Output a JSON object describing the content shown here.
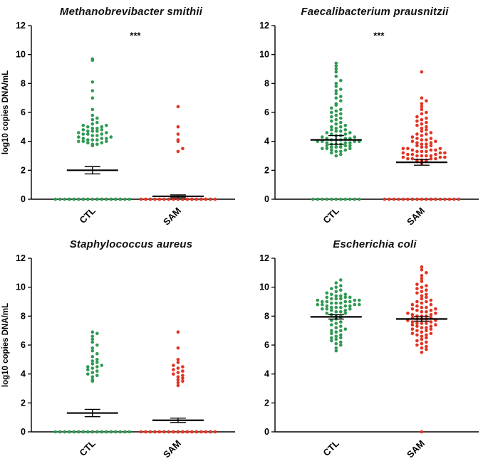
{
  "figure": {
    "background": "#ffffff"
  },
  "chart_data": [
    {
      "type": "scatter",
      "title": "Methanobrevibacter smithii",
      "ylabel": "log10 copies DNA/mL",
      "xlabel": "",
      "ylim": [
        0,
        12
      ],
      "yticks": [
        0,
        2,
        4,
        6,
        8,
        10,
        12
      ],
      "significance": "***",
      "legend": "none",
      "groups": [
        {
          "label": "CTL",
          "color": "#2f9a52",
          "mean": 2.0,
          "sem": 0.25,
          "values": [
            0,
            0,
            0,
            0,
            0,
            0,
            0,
            0,
            0,
            0,
            0,
            0,
            0,
            0,
            0,
            0,
            0,
            0,
            0,
            0,
            0,
            0,
            0,
            0,
            0,
            0,
            0,
            0,
            3.7,
            3.8,
            3.8,
            3.9,
            3.9,
            4.0,
            4.0,
            4.0,
            4.1,
            4.1,
            4.1,
            4.2,
            4.2,
            4.2,
            4.3,
            4.3,
            4.4,
            4.4,
            4.5,
            4.5,
            4.5,
            4.6,
            4.6,
            4.7,
            4.7,
            4.7,
            4.8,
            4.8,
            4.9,
            4.9,
            5.0,
            5.0,
            5.1,
            5.1,
            5.2,
            5.3,
            5.5,
            5.6,
            5.8,
            6.2,
            7.0,
            7.5,
            8.1,
            9.6,
            9.7
          ]
        },
        {
          "label": "SAM",
          "color": "#e23322",
          "mean": 0.2,
          "sem": 0.1,
          "values": [
            0,
            0,
            0,
            0,
            0,
            0,
            0,
            0,
            0,
            0,
            0,
            0,
            0,
            0,
            0,
            0,
            0,
            0,
            0,
            0,
            0,
            0,
            0,
            0,
            0,
            0,
            0,
            0,
            0,
            0,
            0,
            0,
            0,
            0,
            0,
            0,
            0,
            0,
            3.3,
            3.5,
            4.0,
            4.1,
            4.5,
            5.0,
            6.4
          ]
        }
      ]
    },
    {
      "type": "scatter",
      "title": "Faecalibacterium prausnitzii",
      "ylabel": "",
      "xlabel": "",
      "ylim": [
        0,
        12
      ],
      "yticks": [
        0,
        2,
        4,
        6,
        8,
        10,
        12
      ],
      "significance": "***",
      "legend": "none",
      "groups": [
        {
          "label": "CTL",
          "color": "#2f9a52",
          "mean": 4.1,
          "sem": 0.3,
          "values": [
            0,
            0,
            0,
            0,
            0,
            0,
            0,
            0,
            0,
            0,
            0,
            3.0,
            3.1,
            3.2,
            3.3,
            3.3,
            3.4,
            3.4,
            3.5,
            3.5,
            3.5,
            3.6,
            3.6,
            3.6,
            3.7,
            3.7,
            3.7,
            3.8,
            3.8,
            3.8,
            3.9,
            3.9,
            3.9,
            4.0,
            4.0,
            4.0,
            4.0,
            4.1,
            4.1,
            4.1,
            4.2,
            4.2,
            4.2,
            4.3,
            4.3,
            4.4,
            4.4,
            4.5,
            4.5,
            4.6,
            4.6,
            4.7,
            4.7,
            4.8,
            4.8,
            4.9,
            5.0,
            5.0,
            5.1,
            5.2,
            5.3,
            5.4,
            5.5,
            5.6,
            5.7,
            5.8,
            5.9,
            6.0,
            6.1,
            6.2,
            6.3,
            6.5,
            6.6,
            6.8,
            7.0,
            7.1,
            7.3,
            7.5,
            7.6,
            7.8,
            8.0,
            8.2,
            8.5,
            8.8,
            9.0,
            9.2,
            9.4
          ]
        },
        {
          "label": "SAM",
          "color": "#e23322",
          "mean": 2.55,
          "sem": 0.2,
          "values": [
            0,
            0,
            0,
            0,
            0,
            0,
            0,
            0,
            0,
            0,
            0,
            0,
            0,
            0,
            0,
            0,
            0,
            0,
            0,
            0,
            0,
            0,
            2.5,
            2.6,
            2.6,
            2.7,
            2.7,
            2.7,
            2.8,
            2.8,
            2.8,
            2.8,
            2.9,
            2.9,
            2.9,
            3.0,
            3.0,
            3.0,
            3.0,
            3.1,
            3.1,
            3.1,
            3.2,
            3.2,
            3.2,
            3.3,
            3.3,
            3.3,
            3.4,
            3.4,
            3.4,
            3.5,
            3.5,
            3.5,
            3.6,
            3.6,
            3.7,
            3.7,
            3.8,
            3.8,
            3.9,
            3.9,
            4.0,
            4.0,
            4.1,
            4.1,
            4.2,
            4.2,
            4.3,
            4.4,
            4.5,
            4.5,
            4.6,
            4.7,
            4.8,
            4.9,
            5.0,
            5.1,
            5.2,
            5.3,
            5.4,
            5.5,
            5.6,
            5.7,
            5.9,
            6.0,
            6.2,
            6.4,
            6.6,
            6.8,
            7.0,
            8.8
          ]
        }
      ]
    },
    {
      "type": "scatter",
      "title": "Staphylococcus aureus",
      "ylabel": "log10 copies DNA/mL",
      "xlabel": "",
      "ylim": [
        0,
        12
      ],
      "yticks": [
        0,
        2,
        4,
        6,
        8,
        10,
        12
      ],
      "significance": "",
      "legend": "none",
      "groups": [
        {
          "label": "CTL",
          "color": "#2f9a52",
          "mean": 1.3,
          "sem": 0.25,
          "values": [
            0,
            0,
            0,
            0,
            0,
            0,
            0,
            0,
            0,
            0,
            0,
            0,
            0,
            0,
            0,
            0,
            0,
            0,
            0,
            0,
            0,
            0,
            0,
            0,
            0,
            0,
            0,
            0,
            0,
            0,
            0,
            0,
            0,
            3.5,
            3.6,
            3.8,
            3.9,
            4.0,
            4.1,
            4.2,
            4.3,
            4.4,
            4.5,
            4.5,
            4.6,
            4.7,
            4.8,
            4.9,
            5.0,
            5.2,
            5.4,
            5.6,
            5.8,
            6.0,
            6.2,
            6.4,
            6.6,
            6.8,
            6.9
          ]
        },
        {
          "label": "SAM",
          "color": "#e23322",
          "mean": 0.8,
          "sem": 0.15,
          "values": [
            0,
            0,
            0,
            0,
            0,
            0,
            0,
            0,
            0,
            0,
            0,
            0,
            0,
            0,
            0,
            0,
            0,
            0,
            0,
            0,
            0,
            0,
            0,
            0,
            0,
            0,
            0,
            0,
            0,
            0,
            0,
            0,
            0,
            0,
            0,
            0,
            3.2,
            3.4,
            3.5,
            3.6,
            3.7,
            3.8,
            3.9,
            4.0,
            4.1,
            4.2,
            4.3,
            4.4,
            4.5,
            4.6,
            4.8,
            5.0,
            5.8,
            6.9
          ]
        }
      ]
    },
    {
      "type": "scatter",
      "title": "Escherichia coli",
      "ylabel": "",
      "xlabel": "",
      "ylim": [
        0,
        12
      ],
      "yticks": [
        0,
        2,
        4,
        6,
        8,
        10,
        12
      ],
      "significance": "",
      "legend": "none",
      "groups": [
        {
          "label": "CTL",
          "color": "#2f9a52",
          "mean": 7.95,
          "sem": 0.15,
          "values": [
            5.6,
            5.8,
            6.0,
            6.1,
            6.2,
            6.3,
            6.4,
            6.5,
            6.5,
            6.6,
            6.7,
            6.8,
            6.9,
            7.0,
            7.0,
            7.1,
            7.2,
            7.3,
            7.4,
            7.5,
            7.6,
            7.7,
            7.8,
            7.9,
            8.0,
            8.0,
            8.1,
            8.2,
            8.2,
            8.3,
            8.3,
            8.4,
            8.4,
            8.5,
            8.5,
            8.5,
            8.6,
            8.6,
            8.6,
            8.7,
            8.7,
            8.7,
            8.8,
            8.8,
            8.8,
            8.8,
            8.9,
            8.9,
            8.9,
            9.0,
            9.0,
            9.0,
            9.0,
            9.1,
            9.1,
            9.1,
            9.2,
            9.2,
            9.2,
            9.3,
            9.3,
            9.3,
            9.4,
            9.4,
            9.5,
            9.5,
            9.6,
            9.7,
            9.8,
            9.9,
            10.0,
            10.1,
            10.3,
            10.5
          ]
        },
        {
          "label": "SAM",
          "color": "#e23322",
          "mean": 7.8,
          "sem": 0.15,
          "values": [
            0,
            5.5,
            5.7,
            5.8,
            5.9,
            6.0,
            6.1,
            6.2,
            6.3,
            6.4,
            6.5,
            6.6,
            6.7,
            6.7,
            6.8,
            6.8,
            6.9,
            7.0,
            7.0,
            7.1,
            7.1,
            7.2,
            7.2,
            7.3,
            7.3,
            7.4,
            7.4,
            7.5,
            7.5,
            7.5,
            7.6,
            7.6,
            7.7,
            7.7,
            7.8,
            7.8,
            7.8,
            7.9,
            7.9,
            8.0,
            8.0,
            8.0,
            8.1,
            8.1,
            8.2,
            8.2,
            8.3,
            8.3,
            8.4,
            8.4,
            8.5,
            8.5,
            8.6,
            8.6,
            8.7,
            8.8,
            8.8,
            8.9,
            9.0,
            9.0,
            9.1,
            9.2,
            9.3,
            9.4,
            9.5,
            9.6,
            9.7,
            9.8,
            9.9,
            10.0,
            10.1,
            10.2,
            10.4,
            10.6,
            10.8,
            11.0,
            11.2,
            11.4
          ]
        }
      ]
    }
  ]
}
